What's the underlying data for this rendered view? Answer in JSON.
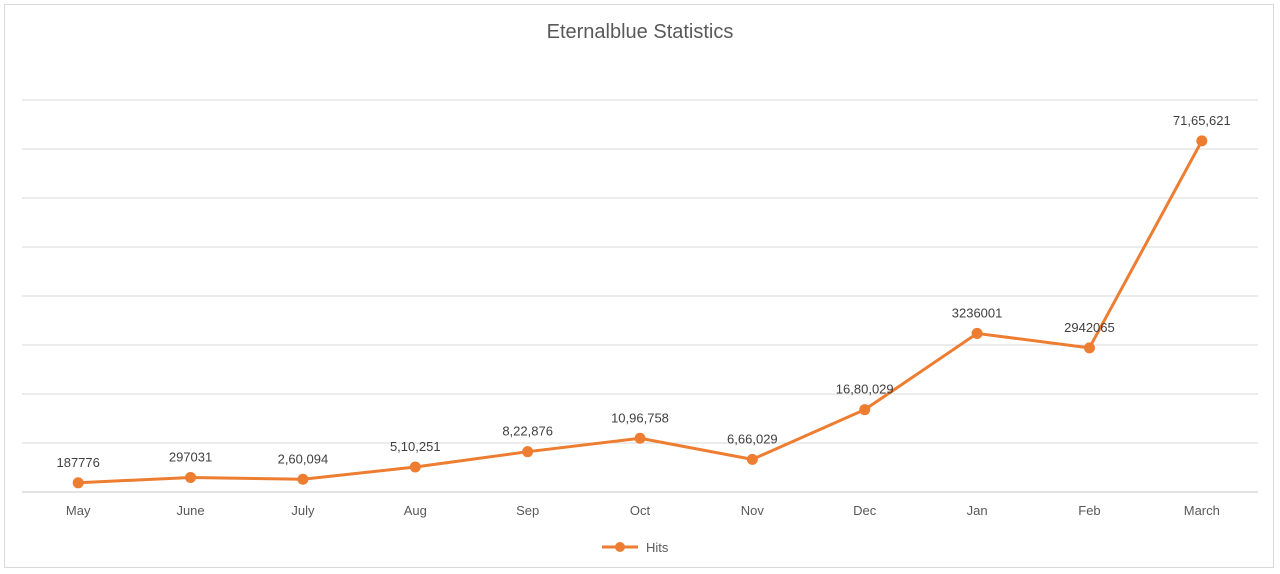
{
  "chart_data": {
    "type": "line",
    "title": "Eternalblue Statistics",
    "categories": [
      "May",
      "June",
      "July",
      "Aug",
      "Sep",
      "Oct",
      "Nov",
      "Dec",
      "Jan",
      "Feb",
      "March"
    ],
    "series": [
      {
        "name": "Hits",
        "color": "#ed7d31",
        "values": [
          187776,
          297031,
          260094,
          510251,
          822876,
          1096758,
          666029,
          1680029,
          3236001,
          2942065,
          7165621
        ],
        "data_labels": [
          "187776",
          "297031",
          "2,60,094",
          "5,10,251",
          "8,22,876",
          "10,96,758",
          "6,66,029",
          "16,80,029",
          "3236001",
          "2942065",
          "71,65,621"
        ]
      }
    ],
    "xlabel": "",
    "ylabel": "",
    "ylim": [
      0,
      8000000
    ],
    "grid": true,
    "gridline_color": "#d9d9d9",
    "legend_position": "bottom"
  }
}
